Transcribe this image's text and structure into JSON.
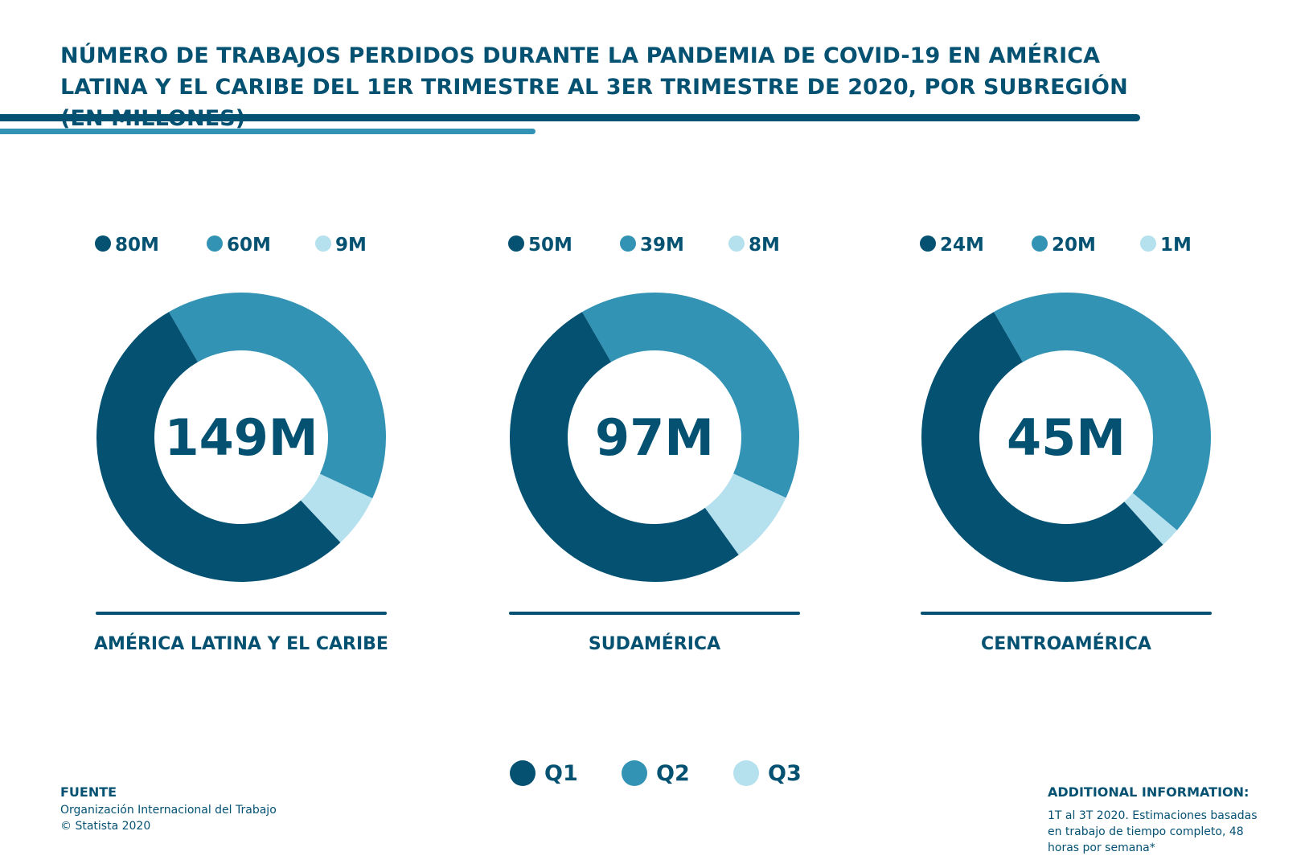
{
  "title": "NÚMERO DE TRABAJOS PERDIDOS DURANTE LA PANDEMIA DE COVID-19 EN AMÉRICA LATINA Y EL CARIBE DEL 1ER TRIMESTRE AL 3ER TRIMESTRE DE 2020, POR SUBREGIÓN (EN MILLONES)",
  "colors": {
    "q1": "#045172",
    "q2": "#3393b4",
    "q3": "#b5e0ee",
    "text": "#045172"
  },
  "chart_data": [
    {
      "type": "pie",
      "region": "AMÉRICA LATINA Y EL CARIBE",
      "total": 149,
      "total_label": "149M",
      "categories": [
        "Q1",
        "Q2",
        "Q3"
      ],
      "values": [
        80,
        60,
        9
      ],
      "value_labels": [
        "80M",
        "60M",
        "9M"
      ]
    },
    {
      "type": "pie",
      "region": "SUDAMÉRICA",
      "total": 97,
      "total_label": "97M",
      "categories": [
        "Q1",
        "Q2",
        "Q3"
      ],
      "values": [
        50,
        39,
        8
      ],
      "value_labels": [
        "50M",
        "39M",
        "8M"
      ]
    },
    {
      "type": "pie",
      "region": "CENTROAMÉRICA",
      "total": 45,
      "total_label": "45M",
      "categories": [
        "Q1",
        "Q2",
        "Q3"
      ],
      "values": [
        24,
        20,
        1
      ],
      "value_labels": [
        "24M",
        "20M",
        "1M"
      ]
    }
  ],
  "legend": [
    "Q1",
    "Q2",
    "Q3"
  ],
  "source": {
    "heading": "FUENTE",
    "lines": [
      "Organización Internacional del Trabajo",
      "© Statista 2020"
    ]
  },
  "additional": {
    "heading": "ADDITIONAL INFORMATION:",
    "text": "1T al 3T 2020. Estimaciones basadas en trabajo de tiempo completo, 48 horas por semana*"
  }
}
